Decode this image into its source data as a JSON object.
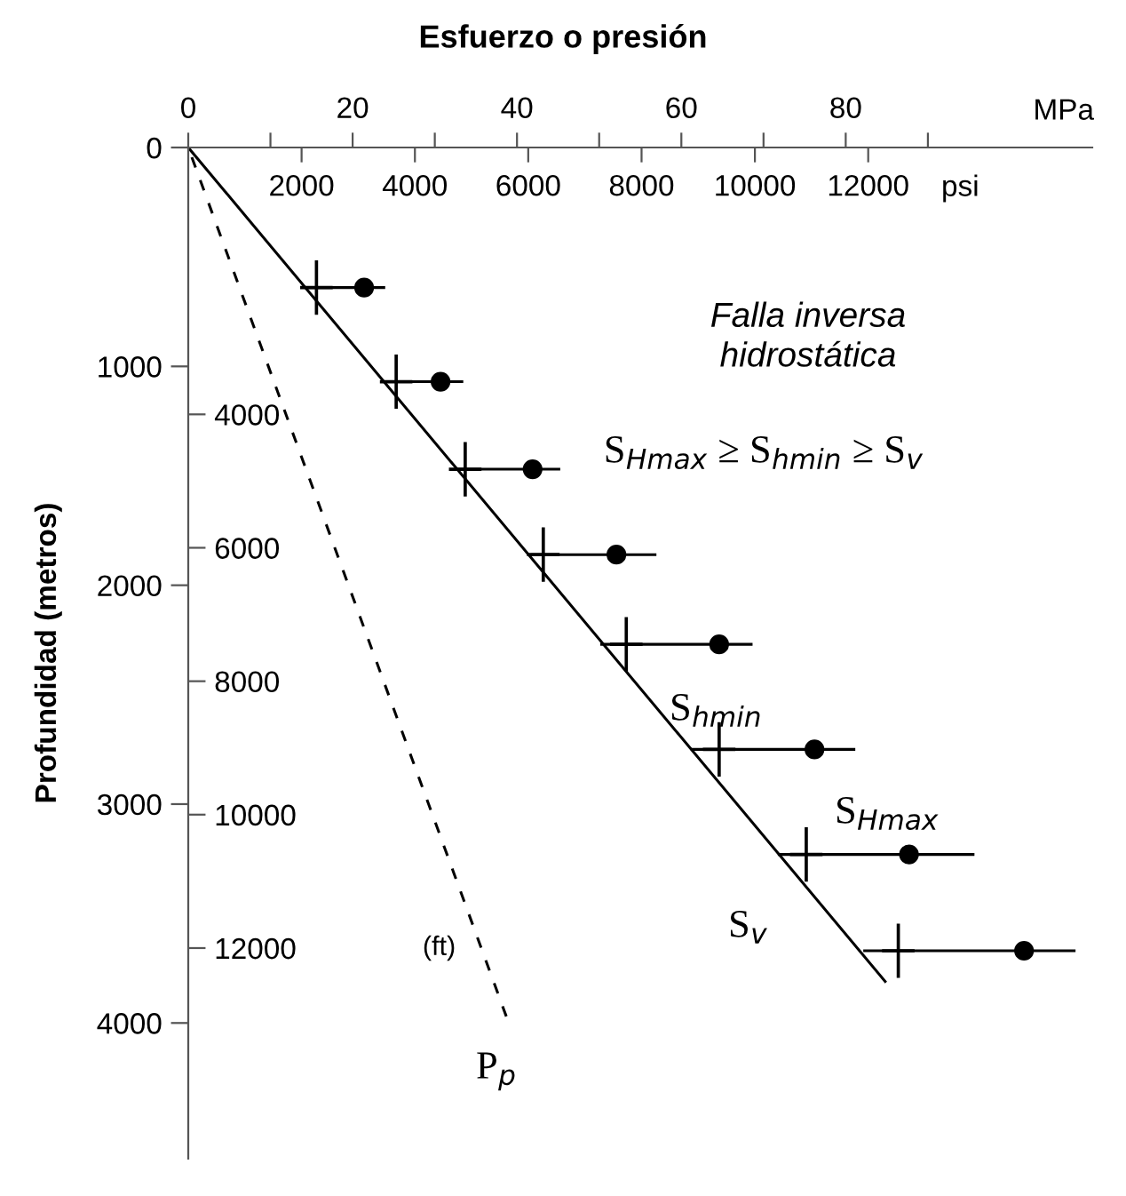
{
  "chart_data": {
    "type": "scatter",
    "title": "Esfuerzo o presión",
    "xlabel": "MPa",
    "x2label": "psi",
    "ylabel": "Profundidad (metros)",
    "y2label": "(ft)",
    "xlim": [
      0,
      110
    ],
    "xticks": [
      0,
      {
        "value": 10,
        "label": null
      },
      20,
      {
        "value": 30,
        "label": null
      },
      40,
      {
        "value": 50,
        "label": null
      },
      60,
      {
        "value": 70,
        "label": null
      },
      80,
      {
        "value": 90,
        "label": null
      }
    ],
    "x2lim": [
      0,
      15954
    ],
    "x2ticks": [
      2000,
      4000,
      6000,
      8000,
      10000,
      12000
    ],
    "ylim": [
      4620,
      0
    ],
    "yticks": [
      0,
      1000,
      2000,
      3000,
      4000
    ],
    "y2lim": [
      15157,
      0
    ],
    "y2ticks": [
      4000,
      6000,
      8000,
      10000,
      12000
    ],
    "series": [
      {
        "type": "line",
        "color": "#000000",
        "line_style": "solid",
        "x": [
          0,
          84.8
        ],
        "values": [
          0,
          3810
        ]
      },
      {
        "type": "line",
        "color": "#000000",
        "line_style": "dashed",
        "x": [
          0,
          38.7
        ],
        "values": [
          0,
          3970
        ]
      },
      {
        "color": "#000000",
        "marker": "circle",
        "x": [
          21.4,
          30.7,
          41.9,
          52.1,
          64.6,
          76.2,
          87.7,
          101.7
        ],
        "values": [
          640,
          1070,
          1470,
          1860,
          2270,
          2750,
          3230,
          3670
        ],
        "xerrors": [
          [
            14.5,
            23.8
          ],
          [
            24.2,
            33.3
          ],
          [
            32.8,
            45.1
          ],
          [
            41.9,
            56.8
          ],
          [
            50.3,
            68.5
          ],
          [
            61.3,
            81.0
          ],
          [
            71.9,
            95.5
          ],
          [
            82.3,
            107.8
          ]
        ]
      },
      {
        "color": "#000000",
        "marker": "cross",
        "x": [
          15.6,
          25.3,
          33.7,
          43.2,
          53.3,
          64.6,
          75.2,
          86.4
        ],
        "values": [
          640,
          1070,
          1470,
          1860,
          2270,
          2750,
          3230,
          3670
        ]
      }
    ],
    "annotations": [
      "Falla inversa\nhidrostática",
      "S$_{Hmax}$ ≥ S$_{hmin}$ ≥ S$_{v}$",
      "S$_{hmin}$",
      "S$_{Hmax}$",
      "S$_{v}$",
      "P$_{p}$"
    ]
  }
}
